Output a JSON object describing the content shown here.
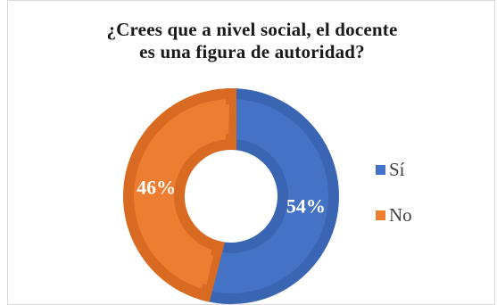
{
  "chart_data": {
    "type": "pie",
    "title_lines": [
      "¿Crees que a nivel social, el docente",
      "es una figura de autoridad?"
    ],
    "categories": [
      "Sí",
      "No"
    ],
    "values": [
      54,
      46
    ],
    "labels": [
      "54%",
      "46%"
    ],
    "colors": [
      "#4472c4",
      "#ed7d31"
    ],
    "legend_position": "right"
  }
}
